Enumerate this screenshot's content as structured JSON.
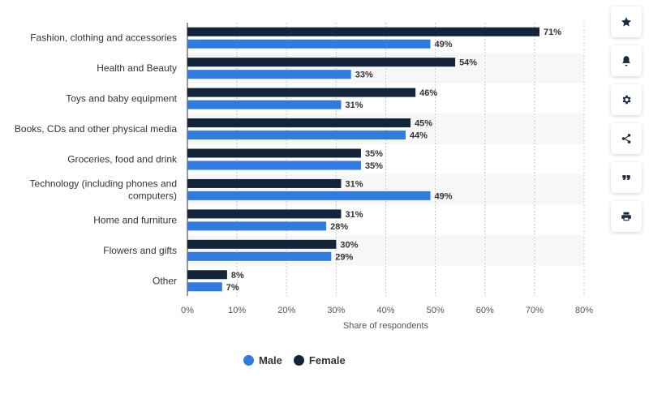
{
  "chart_data": {
    "type": "bar",
    "orientation": "horizontal",
    "categories": [
      "Fashion, clothing and accessories",
      "Health and Beauty",
      "Toys and baby equipment",
      "Books, CDs and other physical media",
      "Groceries, food and drink",
      "Technology (including phones and computers)",
      "Home and furniture",
      "Flowers and gifts",
      "Other"
    ],
    "category_lines": [
      [
        "Fashion, clothing and accessories"
      ],
      [
        "Health and Beauty"
      ],
      [
        "Toys and baby equipment"
      ],
      [
        "Books, CDs and other physical media"
      ],
      [
        "Groceries, food and drink"
      ],
      [
        "Technology (including phones and",
        "computers)"
      ],
      [
        "Home and furniture"
      ],
      [
        "Flowers and gifts"
      ],
      [
        "Other"
      ]
    ],
    "series": [
      {
        "name": "Female",
        "color": "#14253b",
        "values": [
          71,
          54,
          46,
          45,
          35,
          31,
          31,
          30,
          8
        ],
        "labels": [
          "71%",
          "54%",
          "46%",
          "45%",
          "35%",
          "31%",
          "31%",
          "30%",
          "8%"
        ]
      },
      {
        "name": "Male",
        "color": "#2f7be0",
        "values": [
          49,
          33,
          31,
          44,
          35,
          49,
          28,
          29,
          7
        ],
        "labels": [
          "49%",
          "33%",
          "31%",
          "44%",
          "35%",
          "49%",
          "28%",
          "29%",
          "7%"
        ]
      }
    ],
    "xlim": [
      0,
      80
    ],
    "ticks": [
      0,
      10,
      20,
      30,
      40,
      50,
      60,
      70,
      80
    ],
    "tick_labels": [
      "0%",
      "10%",
      "20%",
      "30%",
      "40%",
      "50%",
      "60%",
      "70%",
      "80%"
    ],
    "xlabel": "Share of respondents",
    "ylabel": "",
    "title": "",
    "grid": true,
    "legend_position": "bottom",
    "band_color": "#f7f7f7"
  },
  "legend": {
    "items": [
      {
        "label": "Male",
        "color": "#2f7be0"
      },
      {
        "label": "Female",
        "color": "#14253b"
      }
    ]
  },
  "toolbar": {
    "icons": [
      "star-icon",
      "bell-icon",
      "gear-icon",
      "share-icon",
      "quote-icon",
      "print-icon"
    ]
  }
}
